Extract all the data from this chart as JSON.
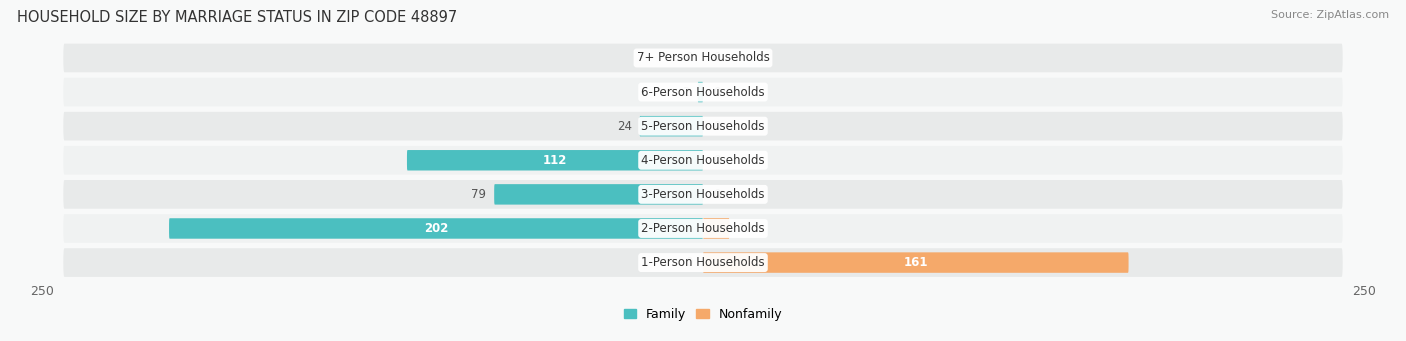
{
  "title": "HOUSEHOLD SIZE BY MARRIAGE STATUS IN ZIP CODE 48897",
  "source": "Source: ZipAtlas.com",
  "categories": [
    "7+ Person Households",
    "6-Person Households",
    "5-Person Households",
    "4-Person Households",
    "3-Person Households",
    "2-Person Households",
    "1-Person Households"
  ],
  "family_values": [
    0,
    2,
    24,
    112,
    79,
    202,
    0
  ],
  "nonfamily_values": [
    0,
    0,
    0,
    0,
    0,
    10,
    161
  ],
  "family_color": "#4BBFC0",
  "nonfamily_color": "#F5A96A",
  "xlim": 250,
  "bar_height": 0.6,
  "row_bg_color": "#e8eaea",
  "row_bg_alt": "#f0f2f2",
  "label_fontsize": 8.5,
  "title_fontsize": 10.5,
  "source_fontsize": 8,
  "fig_bg": "#f8f9f9"
}
